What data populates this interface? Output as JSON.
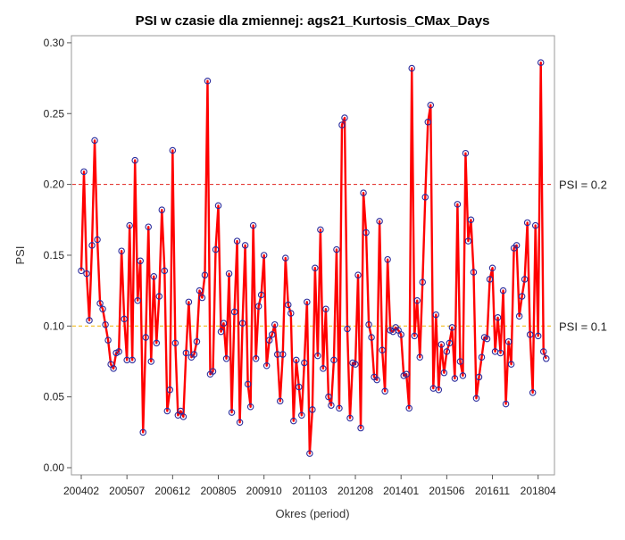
{
  "chart_data": {
    "type": "line",
    "title": "PSI w czasie dla zmiennej: ags21_Kurtosis_CMax_Days",
    "xlabel": "Okres (period)",
    "ylabel": "PSI",
    "ylim": [
      0.0,
      0.3
    ],
    "yticks": [
      "0.00",
      "0.05",
      "0.10",
      "0.15",
      "0.20",
      "0.25",
      "0.30"
    ],
    "xticks": [
      "200402",
      "200507",
      "200612",
      "200805",
      "200910",
      "201103",
      "201208",
      "201401",
      "201506",
      "201611",
      "201804"
    ],
    "grid": false,
    "reference_lines": [
      {
        "value": 0.2,
        "label": "PSI = 0.2",
        "color": "#e0201d"
      },
      {
        "value": 0.1,
        "label": "PSI = 0.1",
        "color": "#f0b400"
      }
    ],
    "colors": {
      "line": "#ff0000",
      "marker": "#2c2c9c",
      "frame": "#9a9a9a"
    },
    "series": [
      {
        "start": "2004-02",
        "values": [
          0.139,
          0.209,
          0.137,
          0.104,
          0.157,
          0.231,
          0.161,
          0.116,
          0.112,
          0.101,
          0.09,
          0.073,
          0.07,
          0.081,
          0.082,
          0.153,
          0.105,
          0.076,
          0.171,
          0.076,
          0.217,
          0.118,
          0.146,
          0.025,
          0.092,
          0.17,
          0.075,
          0.135,
          0.088,
          0.121,
          0.182,
          0.139,
          0.04,
          0.055,
          0.224,
          0.088,
          0.037,
          0.04,
          0.036,
          0.081,
          0.117,
          0.078,
          0.08,
          0.089,
          0.125,
          0.12,
          0.136,
          0.273,
          0.066,
          0.068,
          0.154,
          0.185,
          0.096,
          0.102,
          0.077,
          0.137,
          0.039,
          0.11,
          0.16,
          0.032,
          0.102,
          0.157,
          0.059,
          0.043,
          0.171,
          0.077,
          0.114,
          0.122,
          0.15,
          0.072,
          0.09,
          0.094,
          0.101,
          0.08,
          0.047,
          0.08,
          0.148,
          0.115,
          0.109,
          0.033,
          0.076,
          0.057,
          0.037,
          0.074,
          0.117,
          0.01,
          0.041,
          0.141,
          0.079,
          0.168,
          0.07,
          0.112,
          0.05,
          0.044,
          0.076,
          0.154,
          0.042,
          0.242,
          0.247,
          0.098,
          0.035,
          0.074,
          0.073,
          0.136,
          0.028,
          0.194,
          0.166,
          0.101,
          0.092,
          0.064,
          0.062,
          0.174,
          0.083,
          0.054,
          0.147,
          0.097,
          0.096,
          0.099,
          0.097,
          0.094,
          0.065,
          0.066,
          0.042,
          0.282,
          0.093,
          0.118,
          0.078,
          0.131,
          0.191,
          0.244,
          0.256,
          0.056,
          0.108,
          0.055,
          0.087,
          0.067,
          0.082,
          0.088,
          0.099,
          0.063,
          0.186,
          0.075,
          0.065,
          0.222,
          0.16,
          0.175,
          0.138,
          0.049,
          0.064,
          0.078,
          0.092,
          0.091,
          0.133,
          0.141,
          0.082,
          0.106,
          0.081,
          0.125,
          0.045,
          0.089,
          0.073,
          0.155,
          0.157,
          0.107,
          0.121,
          0.133,
          0.173,
          0.094,
          0.053,
          0.171,
          0.093,
          0.286,
          0.082,
          0.077
        ]
      }
    ]
  }
}
